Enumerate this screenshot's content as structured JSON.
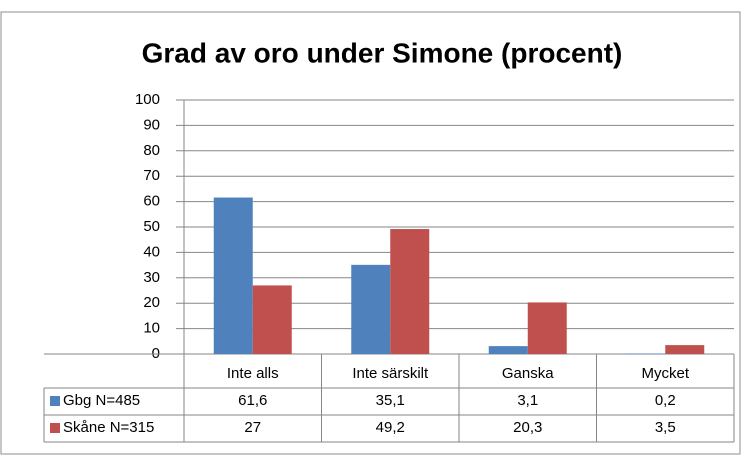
{
  "chart_data": {
    "type": "bar",
    "title": "Grad av oro under Simone (procent)",
    "categories": [
      "Inte alls",
      "Inte särskilt",
      "Ganska",
      "Mycket"
    ],
    "series": [
      {
        "name": "Gbg N=485",
        "color": "#4f81bd",
        "values": [
          61.6,
          35.1,
          3.1,
          0.2
        ],
        "value_labels": [
          "61,6",
          "35,1",
          "3,1",
          "0,2"
        ]
      },
      {
        "name": "Skåne N=315",
        "color": "#c0504d",
        "values": [
          27,
          49.2,
          20.3,
          3.5
        ],
        "value_labels": [
          "27",
          "49,2",
          "20,3",
          "3,5"
        ]
      }
    ],
    "ylim": [
      0,
      100
    ],
    "yticks": [
      0,
      10,
      20,
      30,
      40,
      50,
      60,
      70,
      80,
      90,
      100
    ],
    "grid": true
  }
}
